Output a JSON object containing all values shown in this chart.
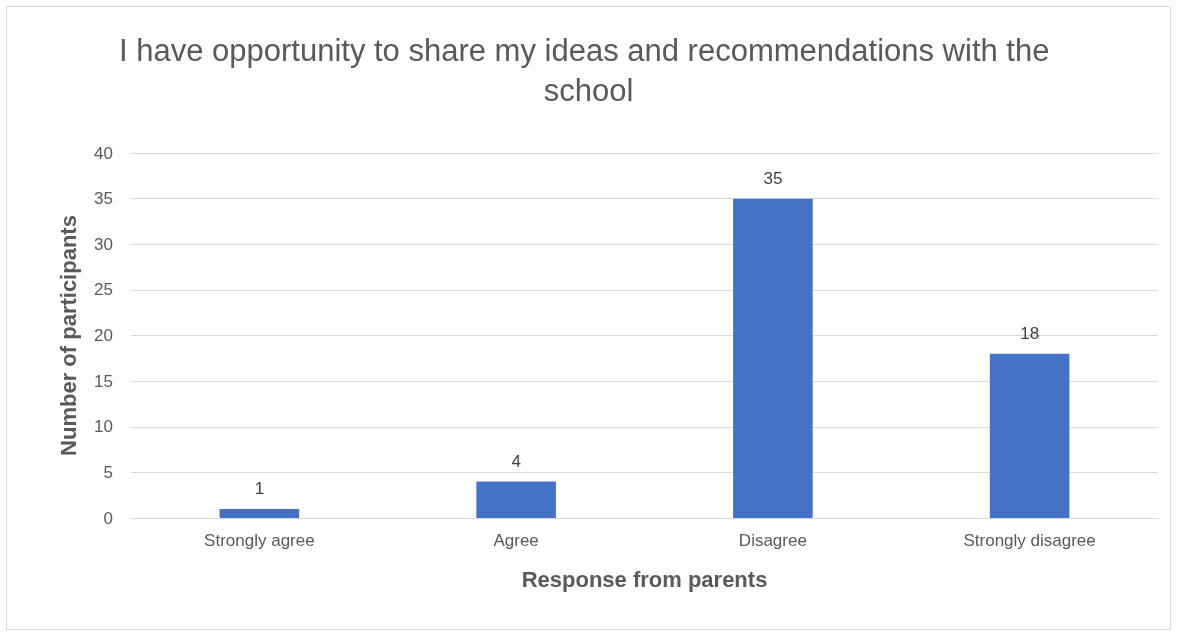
{
  "chart_data": {
    "type": "bar",
    "title": "I have opportunity to share my ideas and recommendations with the school",
    "xlabel": "Response from parents",
    "ylabel": "Number of participants",
    "categories": [
      "Strongly agree",
      "Agree",
      "Disagree",
      "Strongly disagree"
    ],
    "values": [
      1,
      4,
      35,
      18
    ],
    "color": "#4472c4",
    "ylim": [
      0,
      40
    ],
    "yticks": [
      0,
      5,
      10,
      15,
      20,
      25,
      30,
      35,
      40
    ],
    "grid": "y",
    "data_labels": true
  }
}
